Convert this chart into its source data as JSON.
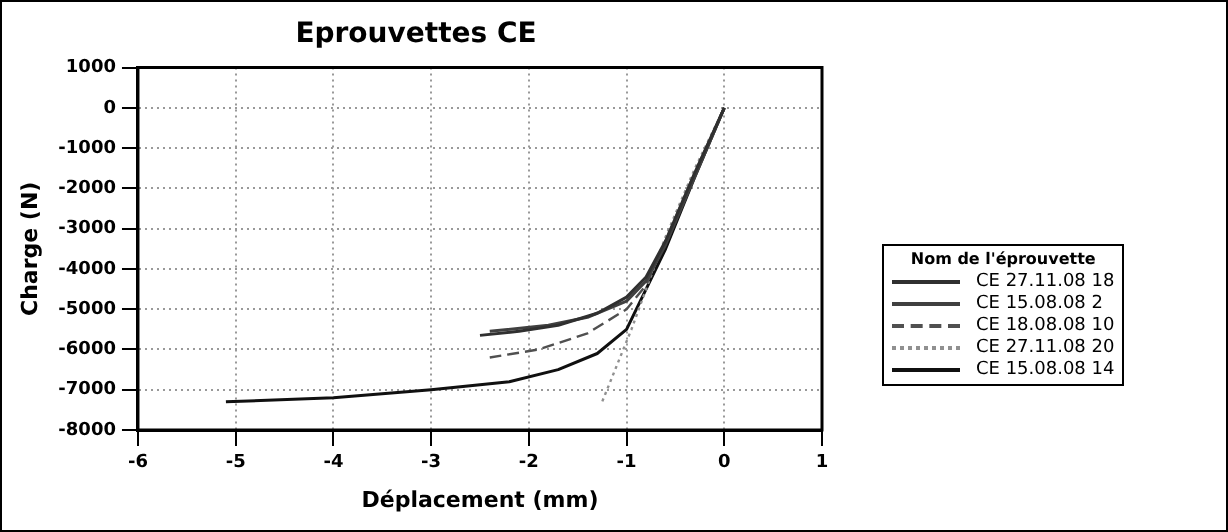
{
  "chart_data": {
    "type": "line",
    "title": "Eprouvettes CE",
    "xlabel": "Déplacement (mm)",
    "ylabel": "Charge (N)",
    "legend_title": "Nom de l'éprouvette",
    "legend": "right",
    "grid": true,
    "marker": "none",
    "xlim": [
      -6,
      1
    ],
    "xticks": [
      -6,
      -5,
      -4,
      -3,
      -2,
      -1,
      0,
      1
    ],
    "ylim": [
      -8000,
      1000
    ],
    "yticks": [
      -8000,
      -7000,
      -6000,
      -5000,
      -4000,
      -3000,
      -2000,
      -1000,
      0,
      1000
    ],
    "series": [
      {
        "name": "CE 27.11.08 18",
        "color": "#303030",
        "line_style": "solid",
        "x": [
          0,
          -0.3,
          -0.6,
          -0.8,
          -1.0,
          -1.3,
          -1.7,
          -2.1,
          -2.5
        ],
        "values": [
          0,
          -1600,
          -3300,
          -4200,
          -4700,
          -5100,
          -5400,
          -5550,
          -5650
        ]
      },
      {
        "name": "CE 15.08.08 2",
        "color": "#404040",
        "line_style": "solid",
        "x": [
          0,
          -0.3,
          -0.6,
          -0.8,
          -1.0,
          -1.4,
          -1.8,
          -2.4
        ],
        "values": [
          0,
          -1700,
          -3400,
          -4300,
          -4800,
          -5200,
          -5400,
          -5550
        ]
      },
      {
        "name": "CE 18.08.08 10",
        "color": "#505050",
        "line_style": "dashed",
        "x": [
          0,
          -0.3,
          -0.6,
          -0.8,
          -1.0,
          -1.4,
          -1.9,
          -2.4
        ],
        "values": [
          0,
          -1600,
          -3300,
          -4400,
          -5000,
          -5600,
          -6000,
          -6200
        ]
      },
      {
        "name": "CE 27.11.08 20",
        "color": "#909090",
        "line_style": "dotted",
        "x": [
          0,
          -0.3,
          -0.6,
          -0.8,
          -0.95,
          -1.1,
          -1.25
        ],
        "values": [
          0,
          -1500,
          -3200,
          -4500,
          -5500,
          -6400,
          -7300
        ]
      },
      {
        "name": "CE 15.08.08 14",
        "color": "#101010",
        "line_style": "solid",
        "x": [
          0,
          -0.3,
          -0.6,
          -0.8,
          -1.0,
          -1.3,
          -1.7,
          -2.2,
          -3,
          -4,
          -5.1
        ],
        "values": [
          0,
          -1700,
          -3500,
          -4500,
          -5500,
          -6100,
          -6500,
          -6800,
          -7000,
          -7200,
          -7300
        ]
      }
    ]
  }
}
